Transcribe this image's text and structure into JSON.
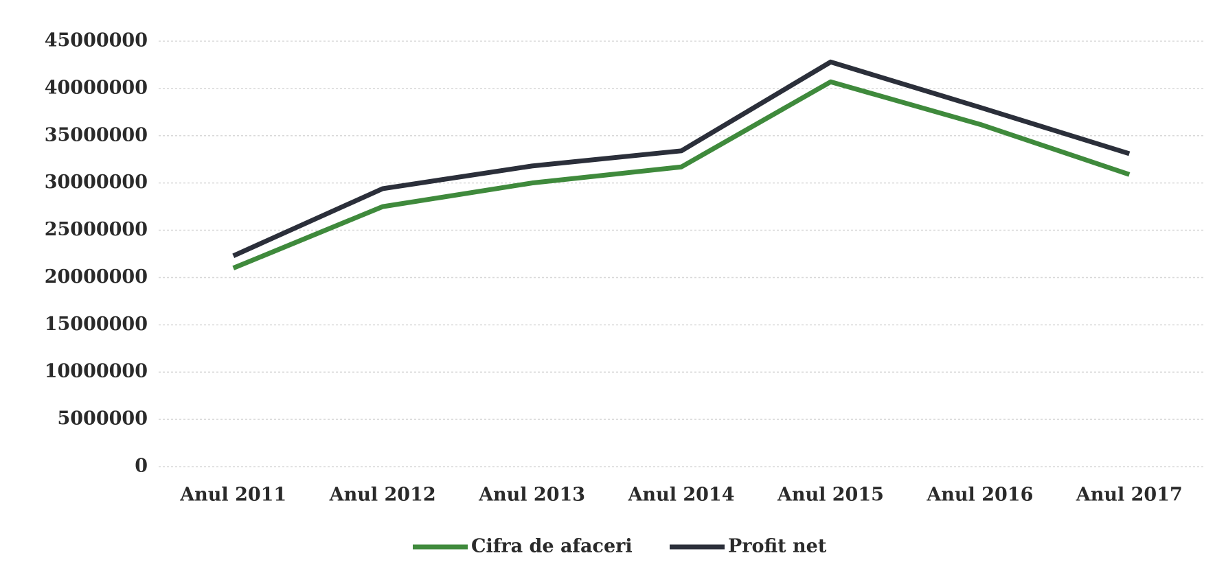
{
  "chart_data": {
    "type": "line",
    "categories": [
      "Anul 2011",
      "Anul 2012",
      "Anul 2013",
      "Anul 2014",
      "Anul 2015",
      "Anul 2016",
      "Anul 2017"
    ],
    "series": [
      {
        "name": "Cifra de afaceri",
        "color": "#3f8a3c",
        "values": [
          21000000,
          27500000,
          30000000,
          31700000,
          40700000,
          36200000,
          30900000
        ]
      },
      {
        "name": "Profit net",
        "color": "#2b2f3a",
        "values": [
          22300000,
          29400000,
          31800000,
          33400000,
          42800000,
          38000000,
          33100000
        ]
      }
    ],
    "ylim": [
      0,
      45000000
    ],
    "yticks": [
      0,
      5000000,
      10000000,
      15000000,
      20000000,
      25000000,
      30000000,
      35000000,
      40000000,
      45000000
    ],
    "grid": true,
    "legend": "bottom"
  }
}
